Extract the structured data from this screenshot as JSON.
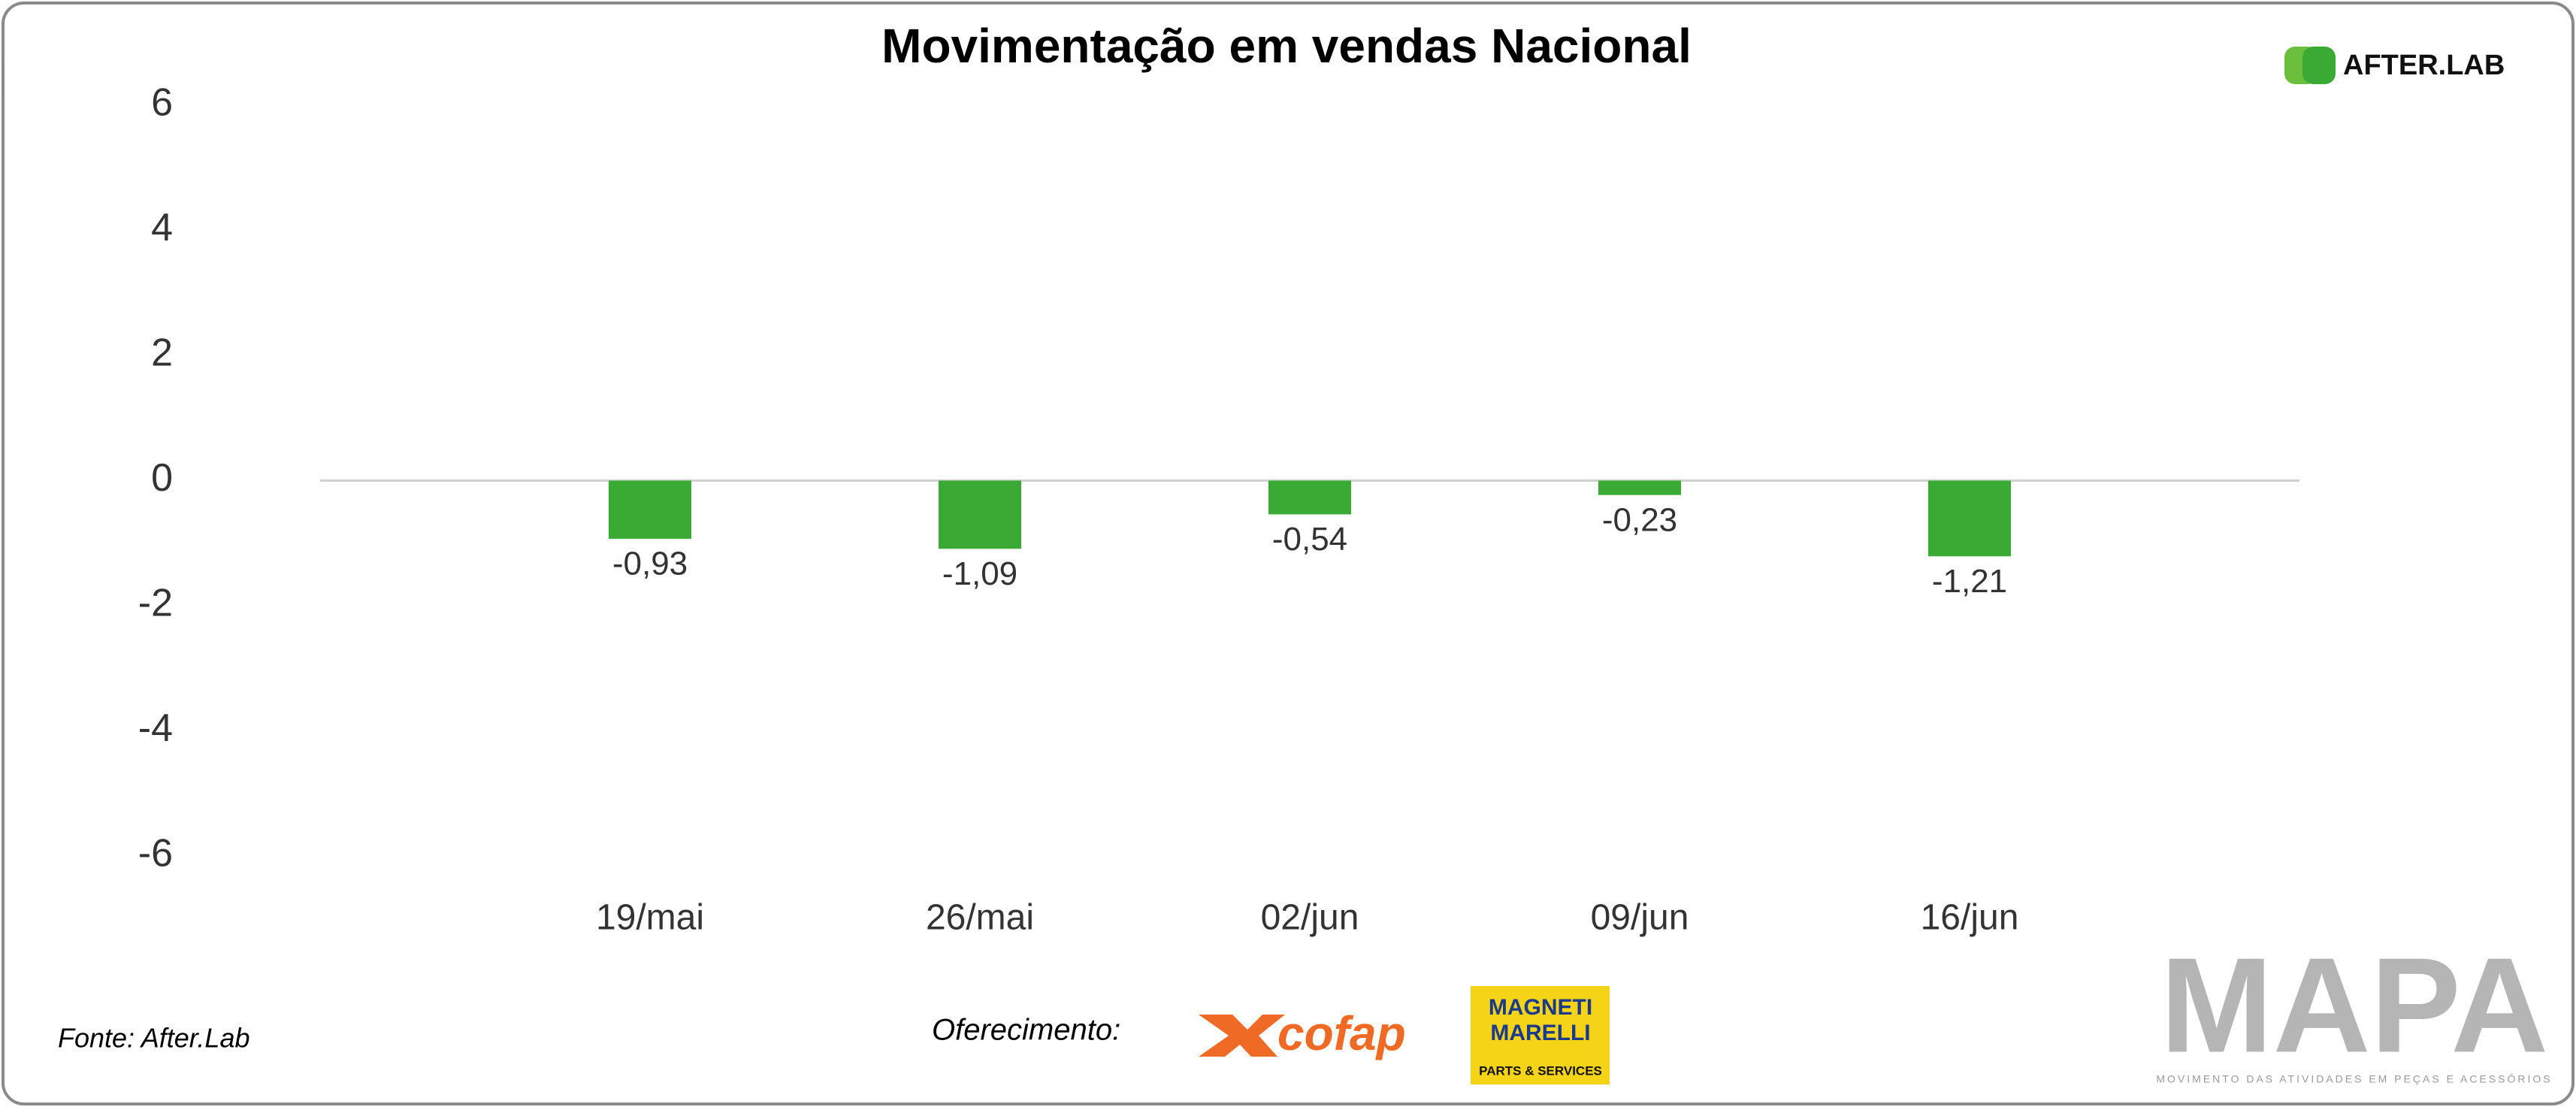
{
  "chart_data": {
    "type": "bar",
    "title": "Movimentação em vendas Nacional",
    "categories": [
      "19/mai",
      "26/mai",
      "02/jun",
      "09/jun",
      "16/jun"
    ],
    "values": [
      -0.93,
      -1.09,
      -0.54,
      -0.23,
      -1.21
    ],
    "value_labels": [
      "-0,93",
      "-1,09",
      "-0,54",
      "-0,23",
      "-1,21"
    ],
    "color": "#3aaa35",
    "ylim": [
      -6,
      6
    ],
    "yticks": [
      -6,
      -4,
      -2,
      0,
      2,
      4,
      6
    ],
    "grid": false
  },
  "source": "Fonte: After.Lab",
  "sponsor_label": "Oferecimento:",
  "logos": {
    "afterlab": "AFTER.LAB",
    "cofap": "cofap",
    "magneti_top": "MAGNETI",
    "magneti_bottom": "MARELLI",
    "magneti_sub": "PARTS & SERVICES",
    "mapa": "MAPA",
    "mapa_sub": "MOVIMENTO DAS ATIVIDADES EM PEÇAS E ACESSÓRIOS"
  }
}
